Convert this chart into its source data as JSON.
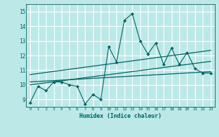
{
  "xlabel": "Humidex (Indice chaleur)",
  "background_color": "#bde8e8",
  "grid_color": "#ffffff",
  "line_color": "#006060",
  "xlim": [
    -0.5,
    23.5
  ],
  "ylim": [
    8.5,
    15.5
  ],
  "yticks": [
    9,
    10,
    11,
    12,
    13,
    14,
    15
  ],
  "xticks": [
    0,
    1,
    2,
    3,
    4,
    5,
    6,
    7,
    8,
    9,
    10,
    11,
    12,
    13,
    14,
    15,
    16,
    17,
    18,
    19,
    20,
    21,
    22,
    23
  ],
  "series1_x": [
    0,
    1,
    2,
    3,
    4,
    5,
    6,
    7,
    8,
    9,
    10,
    11,
    12,
    13,
    14,
    15,
    16,
    17,
    18,
    19,
    20,
    21,
    22,
    23
  ],
  "series1_y": [
    8.8,
    9.9,
    9.6,
    10.2,
    10.2,
    10.0,
    9.9,
    8.7,
    9.35,
    9.0,
    12.6,
    11.55,
    14.4,
    14.85,
    13.0,
    12.1,
    12.85,
    11.4,
    12.5,
    11.4,
    12.2,
    11.1,
    10.8,
    10.8
  ],
  "trend1_x": [
    0,
    23
  ],
  "trend1_y": [
    10.0,
    11.6
  ],
  "trend2_x": [
    0,
    23
  ],
  "trend2_y": [
    10.7,
    12.35
  ],
  "trend3_x": [
    0,
    23
  ],
  "trend3_y": [
    10.2,
    10.9
  ]
}
